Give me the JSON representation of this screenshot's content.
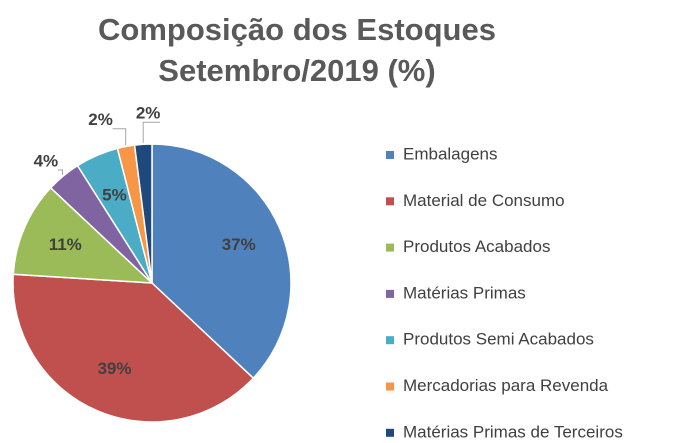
{
  "chart_data": {
    "type": "pie",
    "title": [
      "Composição dos Estoques",
      "Setembro/2019 (%)"
    ],
    "categories": [
      "Embalagens",
      "Material de Consumo",
      "Produtos Acabados",
      "Matérias Primas",
      "Produtos Semi Acabados",
      "Mercadorias para Revenda",
      "Matérias Primas de Terceiros"
    ],
    "values": [
      37,
      39,
      11,
      4,
      5,
      2,
      2
    ],
    "value_labels": [
      "37%",
      "39%",
      "11%",
      "4%",
      "5%",
      "2%",
      "2%"
    ],
    "colors": [
      "#4f81bd",
      "#c0504d",
      "#9bbb59",
      "#8064a2",
      "#4bacc6",
      "#f79646",
      "#1f497d"
    ],
    "legend": "right"
  }
}
